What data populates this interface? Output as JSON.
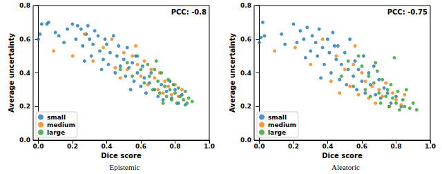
{
  "chart_data": [
    {
      "type": "scatter",
      "title": "Epistemic",
      "annotation": "PCC: -0.8",
      "x_label": "Dice score",
      "y_label": "Average uncertainty",
      "xlim": [
        -0.03,
        1.0
      ],
      "ylim": [
        0,
        0.8
      ],
      "xticks": [
        {
          "value": 0,
          "label": "0.0"
        },
        0.2,
        0.4,
        0.6,
        0.8,
        {
          "value": 1,
          "label": "1.0"
        }
      ],
      "yticks": [
        {
          "value": 0,
          "label": "0.0"
        },
        0.2,
        0.4,
        0.6,
        0.8
      ],
      "grid": false,
      "legend": "lower left",
      "marker": "circle",
      "series": [
        {
          "name": "small",
          "color": "#1f77b4",
          "values": [
            [
              0.0,
              0.6
            ],
            [
              0.01,
              0.63
            ],
            [
              0.02,
              0.69
            ],
            [
              0.05,
              0.69
            ],
            [
              0.06,
              0.7
            ],
            [
              0.1,
              0.64
            ],
            [
              0.12,
              0.62
            ],
            [
              0.15,
              0.58
            ],
            [
              0.17,
              0.66
            ],
            [
              0.2,
              0.69
            ],
            [
              0.22,
              0.6
            ],
            [
              0.23,
              0.68
            ],
            [
              0.25,
              0.66
            ],
            [
              0.26,
              0.56
            ],
            [
              0.28,
              0.63
            ],
            [
              0.29,
              0.68
            ],
            [
              0.3,
              0.6
            ],
            [
              0.31,
              0.5
            ],
            [
              0.32,
              0.57
            ],
            [
              0.33,
              0.65
            ],
            [
              0.35,
              0.62
            ],
            [
              0.36,
              0.53
            ],
            [
              0.38,
              0.48
            ],
            [
              0.39,
              0.6
            ],
            [
              0.4,
              0.57
            ],
            [
              0.41,
              0.45
            ],
            [
              0.42,
              0.52
            ],
            [
              0.44,
              0.62
            ],
            [
              0.45,
              0.4
            ],
            [
              0.46,
              0.5
            ],
            [
              0.47,
              0.56
            ],
            [
              0.48,
              0.44
            ],
            [
              0.5,
              0.48
            ],
            [
              0.51,
              0.38
            ],
            [
              0.52,
              0.55
            ],
            [
              0.53,
              0.43
            ],
            [
              0.55,
              0.46
            ],
            [
              0.56,
              0.35
            ],
            [
              0.57,
              0.5
            ],
            [
              0.58,
              0.4
            ],
            [
              0.6,
              0.32
            ],
            [
              0.61,
              0.44
            ],
            [
              0.62,
              0.37
            ],
            [
              0.63,
              0.28
            ],
            [
              0.65,
              0.34
            ],
            [
              0.66,
              0.4
            ],
            [
              0.68,
              0.3
            ],
            [
              0.7,
              0.26
            ],
            [
              0.72,
              0.33
            ],
            [
              0.73,
              0.24
            ],
            [
              0.75,
              0.29
            ],
            [
              0.77,
              0.35
            ],
            [
              0.78,
              0.25
            ],
            [
              0.8,
              0.3
            ],
            [
              0.82,
              0.22
            ],
            [
              0.84,
              0.27
            ],
            [
              0.86,
              0.21
            ],
            [
              0.37,
              0.42
            ],
            [
              0.27,
              0.47
            ],
            [
              0.54,
              0.3
            ]
          ]
        },
        {
          "name": "medium",
          "color": "#ff7f0e",
          "values": [
            [
              0.09,
              0.53
            ],
            [
              0.2,
              0.5
            ],
            [
              0.27,
              0.63
            ],
            [
              0.32,
              0.47
            ],
            [
              0.38,
              0.55
            ],
            [
              0.43,
              0.6
            ],
            [
              0.45,
              0.43
            ],
            [
              0.5,
              0.52
            ],
            [
              0.52,
              0.42
            ],
            [
              0.55,
              0.5
            ],
            [
              0.58,
              0.45
            ],
            [
              0.6,
              0.38
            ],
            [
              0.62,
              0.47
            ],
            [
              0.64,
              0.33
            ],
            [
              0.66,
              0.42
            ],
            [
              0.68,
              0.37
            ],
            [
              0.7,
              0.3
            ],
            [
              0.71,
              0.4
            ],
            [
              0.73,
              0.28
            ],
            [
              0.74,
              0.35
            ],
            [
              0.76,
              0.32
            ],
            [
              0.78,
              0.27
            ],
            [
              0.8,
              0.33
            ],
            [
              0.82,
              0.26
            ],
            [
              0.84,
              0.3
            ],
            [
              0.57,
              0.56
            ],
            [
              0.48,
              0.37
            ]
          ]
        },
        {
          "name": "large",
          "color": "#2ca02c",
          "values": [
            [
              0.48,
              0.42
            ],
            [
              0.52,
              0.46
            ],
            [
              0.55,
              0.38
            ],
            [
              0.58,
              0.5
            ],
            [
              0.6,
              0.42
            ],
            [
              0.62,
              0.34
            ],
            [
              0.64,
              0.45
            ],
            [
              0.65,
              0.38
            ],
            [
              0.67,
              0.3
            ],
            [
              0.68,
              0.42
            ],
            [
              0.7,
              0.35
            ],
            [
              0.71,
              0.28
            ],
            [
              0.72,
              0.4
            ],
            [
              0.74,
              0.32
            ],
            [
              0.75,
              0.26
            ],
            [
              0.76,
              0.36
            ],
            [
              0.77,
              0.3
            ],
            [
              0.78,
              0.24
            ],
            [
              0.79,
              0.33
            ],
            [
              0.8,
              0.28
            ],
            [
              0.81,
              0.22
            ],
            [
              0.82,
              0.31
            ],
            [
              0.83,
              0.26
            ],
            [
              0.85,
              0.24
            ],
            [
              0.86,
              0.29
            ],
            [
              0.87,
              0.22
            ],
            [
              0.88,
              0.25
            ],
            [
              0.9,
              0.23
            ],
            [
              0.69,
              0.47
            ],
            [
              0.73,
              0.22
            ]
          ]
        }
      ]
    },
    {
      "type": "scatter",
      "title": "Aleatoric",
      "annotation": "PCC: -0.75",
      "x_label": "Dice score",
      "y_label": "Average uncertainty",
      "xlim": [
        -0.03,
        1.0
      ],
      "ylim": [
        0,
        0.8
      ],
      "xticks": [
        {
          "value": 0,
          "label": "0.0"
        },
        0.2,
        0.4,
        0.6,
        0.8,
        {
          "value": 1,
          "label": "1.0"
        }
      ],
      "yticks": [
        {
          "value": 0,
          "label": "0.0"
        },
        0.2,
        0.4,
        0.6,
        0.8
      ],
      "grid": false,
      "legend": "lower left",
      "marker": "circle",
      "series": [
        {
          "name": "small",
          "color": "#1f77b4",
          "values": [
            [
              0.0,
              0.58
            ],
            [
              0.01,
              0.61
            ],
            [
              0.02,
              0.7
            ],
            [
              0.03,
              0.62
            ],
            [
              0.13,
              0.63
            ],
            [
              0.15,
              0.57
            ],
            [
              0.2,
              0.69
            ],
            [
              0.22,
              0.58
            ],
            [
              0.24,
              0.65
            ],
            [
              0.26,
              0.6
            ],
            [
              0.28,
              0.67
            ],
            [
              0.3,
              0.53
            ],
            [
              0.31,
              0.62
            ],
            [
              0.33,
              0.58
            ],
            [
              0.34,
              0.5
            ],
            [
              0.35,
              0.66
            ],
            [
              0.37,
              0.55
            ],
            [
              0.38,
              0.45
            ],
            [
              0.4,
              0.6
            ],
            [
              0.41,
              0.52
            ],
            [
              0.42,
              0.4
            ],
            [
              0.43,
              0.64
            ],
            [
              0.45,
              0.48
            ],
            [
              0.46,
              0.56
            ],
            [
              0.47,
              0.36
            ],
            [
              0.48,
              0.45
            ],
            [
              0.5,
              0.52
            ],
            [
              0.51,
              0.33
            ],
            [
              0.52,
              0.42
            ],
            [
              0.53,
              0.6
            ],
            [
              0.55,
              0.38
            ],
            [
              0.56,
              0.47
            ],
            [
              0.57,
              0.3
            ],
            [
              0.58,
              0.42
            ],
            [
              0.6,
              0.35
            ],
            [
              0.61,
              0.5
            ],
            [
              0.62,
              0.28
            ],
            [
              0.64,
              0.4
            ],
            [
              0.65,
              0.33
            ],
            [
              0.67,
              0.44
            ],
            [
              0.68,
              0.27
            ],
            [
              0.7,
              0.36
            ],
            [
              0.71,
              0.25
            ],
            [
              0.73,
              0.31
            ],
            [
              0.75,
              0.28
            ],
            [
              0.77,
              0.22
            ],
            [
              0.8,
              0.26
            ],
            [
              0.83,
              0.2
            ],
            [
              0.36,
              0.37
            ],
            [
              0.27,
              0.49
            ],
            [
              0.44,
              0.56
            ]
          ]
        },
        {
          "name": "medium",
          "color": "#ff7f0e",
          "values": [
            [
              0.09,
              0.53
            ],
            [
              0.21,
              0.55
            ],
            [
              0.3,
              0.45
            ],
            [
              0.37,
              0.6
            ],
            [
              0.42,
              0.35
            ],
            [
              0.45,
              0.5
            ],
            [
              0.5,
              0.42
            ],
            [
              0.53,
              0.32
            ],
            [
              0.55,
              0.45
            ],
            [
              0.58,
              0.27
            ],
            [
              0.6,
              0.4
            ],
            [
              0.62,
              0.35
            ],
            [
              0.64,
              0.25
            ],
            [
              0.66,
              0.32
            ],
            [
              0.68,
              0.22
            ],
            [
              0.7,
              0.3
            ],
            [
              0.72,
              0.26
            ],
            [
              0.74,
              0.34
            ],
            [
              0.76,
              0.2
            ],
            [
              0.78,
              0.28
            ],
            [
              0.8,
              0.24
            ],
            [
              0.83,
              0.21
            ],
            [
              0.85,
              0.27
            ],
            [
              0.56,
              0.56
            ],
            [
              0.47,
              0.28
            ]
          ]
        },
        {
          "name": "large",
          "color": "#2ca02c",
          "values": [
            [
              0.48,
              0.38
            ],
            [
              0.52,
              0.47
            ],
            [
              0.55,
              0.32
            ],
            [
              0.58,
              0.5
            ],
            [
              0.6,
              0.44
            ],
            [
              0.62,
              0.3
            ],
            [
              0.64,
              0.38
            ],
            [
              0.65,
              0.26
            ],
            [
              0.67,
              0.34
            ],
            [
              0.68,
              0.46
            ],
            [
              0.7,
              0.28
            ],
            [
              0.71,
              0.22
            ],
            [
              0.72,
              0.36
            ],
            [
              0.74,
              0.26
            ],
            [
              0.75,
              0.3
            ],
            [
              0.76,
              0.2
            ],
            [
              0.77,
              0.33
            ],
            [
              0.78,
              0.25
            ],
            [
              0.8,
              0.22
            ],
            [
              0.81,
              0.29
            ],
            [
              0.82,
              0.18
            ],
            [
              0.84,
              0.24
            ],
            [
              0.85,
              0.2
            ],
            [
              0.86,
              0.3
            ],
            [
              0.88,
              0.19
            ],
            [
              0.9,
              0.22
            ],
            [
              0.92,
              0.18
            ],
            [
              0.79,
              0.49
            ],
            [
              0.69,
              0.41
            ]
          ]
        }
      ]
    }
  ]
}
